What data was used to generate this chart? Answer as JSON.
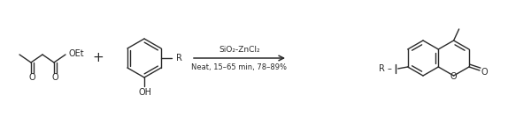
{
  "bg": "#ffffff",
  "lc": "#2a2a2a",
  "lw": 1.0,
  "fs": 7.0,
  "arrow_top": "SiO₂-ZnCl₂",
  "arrow_bottom": "Neat, 15–65 min, 78–89%",
  "figsize": [
    6.0,
    1.42
  ],
  "dpi": 100,
  "xlim": [
    0,
    600
  ],
  "ylim": [
    0,
    142
  ]
}
